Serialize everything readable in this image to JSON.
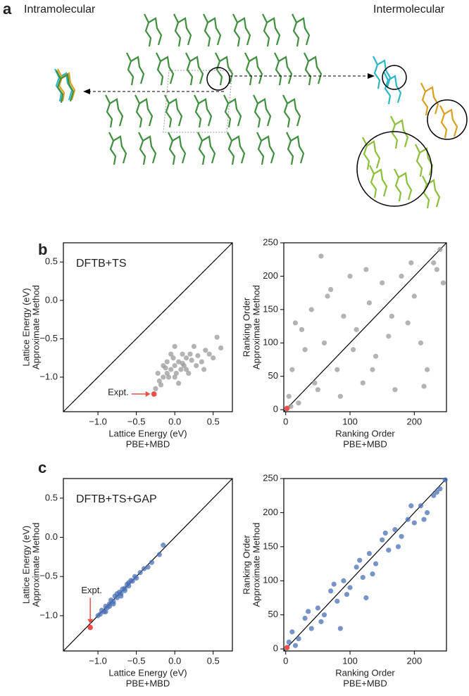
{
  "figure": {
    "panel_a": "a",
    "intramolecular": "Intramolecular",
    "intermolecular": "Intermolecular",
    "panel_b": "b",
    "panel_c": "c"
  },
  "chart_data": [
    {
      "type": "scatter",
      "annotation": "DFTB+TS",
      "xlabel": [
        "Lattice Energy (eV)",
        "PBE+MBD"
      ],
      "ylabel": [
        "Lattice Energy (eV)",
        "Approximate Method"
      ],
      "xlim": [
        -1.45,
        0.75
      ],
      "ylim": [
        -1.45,
        0.75
      ],
      "xticks": [
        {
          "value": -1,
          "label": "−1.0"
        },
        {
          "value": -0.5,
          "label": "−0.5"
        },
        {
          "value": 0,
          "label": "0.0"
        },
        {
          "value": 0.5,
          "label": "0.5"
        }
      ],
      "yticks": [
        {
          "value": -1,
          "label": "−1.0"
        },
        {
          "value": -0.5,
          "label": "−0.5"
        },
        {
          "value": 0,
          "label": "0.0"
        },
        {
          "value": 0.5,
          "label": "0.5"
        }
      ],
      "color": "#9a9a9a",
      "x": [
        -0.25,
        -0.2,
        -0.15,
        -0.1,
        -0.05,
        0,
        0.05,
        0.1,
        0.15,
        0.2,
        -0.18,
        -0.08,
        0.02,
        0.12,
        0.22,
        0.3,
        0.35,
        0.4,
        0.45,
        0.55,
        0.6,
        -0.22,
        -0.12,
        -0.02,
        0.08,
        0.18,
        0.28,
        -0.1,
        0,
        0.1,
        0.05,
        -0.05,
        0.15,
        0.25,
        -0.15,
        0.0,
        0.38,
        0.5
      ],
      "y": [
        -1.15,
        -1.05,
        -1.0,
        -0.95,
        -0.9,
        -0.85,
        -0.8,
        -0.82,
        -0.75,
        -0.7,
        -1.1,
        -1.0,
        -0.95,
        -0.85,
        -0.78,
        -0.72,
        -0.8,
        -0.65,
        -0.7,
        -0.48,
        -0.62,
        -0.95,
        -0.88,
        -0.75,
        -0.9,
        -0.95,
        -0.85,
        -0.8,
        -1.0,
        -0.7,
        -1.08,
        -0.7,
        -0.9,
        -0.6,
        -0.85,
        -0.6,
        -0.9,
        -0.75
      ],
      "expt": {
        "label": "Expt.",
        "x": -0.27,
        "y": -1.22,
        "color": "#e8504a"
      }
    },
    {
      "type": "scatter",
      "xlabel": [
        "Ranking Order",
        "PBE+MBD"
      ],
      "ylabel": [
        "Ranking Order",
        "Approximate Method"
      ],
      "xlim": [
        -3,
        250
      ],
      "ylim": [
        -3,
        250
      ],
      "xticks": [
        0,
        100,
        200
      ],
      "yticks": [
        0,
        50,
        100,
        150,
        200,
        250
      ],
      "color": "#9a9a9a",
      "x": [
        5,
        10,
        15,
        20,
        30,
        40,
        50,
        55,
        60,
        70,
        80,
        90,
        100,
        110,
        120,
        125,
        130,
        140,
        150,
        160,
        170,
        180,
        190,
        200,
        210,
        220,
        230,
        240,
        245,
        8,
        25,
        45,
        65,
        85,
        105,
        135,
        165,
        195,
        215,
        235
      ],
      "y": [
        20,
        60,
        130,
        10,
        90,
        150,
        30,
        230,
        100,
        180,
        60,
        140,
        200,
        120,
        40,
        210,
        160,
        80,
        190,
        110,
        30,
        200,
        130,
        170,
        100,
        60,
        220,
        240,
        190,
        5,
        120,
        40,
        170,
        20,
        90,
        60,
        140,
        220,
        35,
        210
      ],
      "expt": {
        "x": 2,
        "y": 2,
        "color": "#e8504a"
      }
    },
    {
      "type": "scatter",
      "annotation": "DFTB+TS+GAP",
      "xlabel": [
        "Lattice Energy (eV)",
        "PBE+MBD"
      ],
      "ylabel": [
        "Lattice Energy (eV)",
        "Approximate Method"
      ],
      "xlim": [
        -1.45,
        0.75
      ],
      "ylim": [
        -1.45,
        0.75
      ],
      "xticks": [
        {
          "value": -1,
          "label": "−1.0"
        },
        {
          "value": -0.5,
          "label": "−0.5"
        },
        {
          "value": 0,
          "label": "0.0"
        },
        {
          "value": 0.5,
          "label": "0.5"
        }
      ],
      "yticks": [
        {
          "value": -1,
          "label": "−1.0"
        },
        {
          "value": -0.5,
          "label": "−0.5"
        },
        {
          "value": 0,
          "label": "0.0"
        },
        {
          "value": 0.5,
          "label": "0.5"
        }
      ],
      "color": "#4a6fb5",
      "x": [
        -1.0,
        -0.97,
        -0.95,
        -0.92,
        -0.9,
        -0.88,
        -0.85,
        -0.83,
        -0.8,
        -0.78,
        -0.75,
        -0.72,
        -0.7,
        -0.68,
        -0.65,
        -0.62,
        -0.6,
        -0.57,
        -0.55,
        -0.52,
        -0.5,
        -0.45,
        -0.4,
        -0.35,
        -0.3,
        -0.2,
        -0.15,
        -0.9,
        -0.8,
        -0.7,
        -0.6,
        -0.85,
        -0.75,
        -0.65
      ],
      "y": [
        -1.0,
        -0.98,
        -0.93,
        -0.95,
        -0.88,
        -0.9,
        -0.85,
        -0.8,
        -0.82,
        -0.75,
        -0.77,
        -0.7,
        -0.72,
        -0.66,
        -0.65,
        -0.6,
        -0.62,
        -0.55,
        -0.56,
        -0.5,
        -0.52,
        -0.45,
        -0.4,
        -0.38,
        -0.32,
        -0.22,
        -0.1,
        -0.95,
        -0.85,
        -0.75,
        -0.58,
        -0.88,
        -0.72,
        -0.68
      ],
      "expt": {
        "label": "Expt.",
        "x": -1.1,
        "y": -1.15,
        "color": "#e8504a"
      }
    },
    {
      "type": "scatter",
      "xlabel": [
        "Ranking Order",
        "PBE+MBD"
      ],
      "ylabel": [
        "Ranking Order",
        "Approximate Method"
      ],
      "xlim": [
        -3,
        250
      ],
      "ylim": [
        -3,
        250
      ],
      "xticks": [
        0,
        100,
        200
      ],
      "yticks": [
        0,
        50,
        100,
        150,
        200,
        250
      ],
      "color": "#4a6fb5",
      "x": [
        5,
        10,
        20,
        30,
        40,
        50,
        60,
        70,
        80,
        90,
        100,
        110,
        120,
        130,
        140,
        150,
        160,
        170,
        180,
        190,
        200,
        210,
        220,
        230,
        240,
        248,
        15,
        35,
        55,
        75,
        95,
        115,
        135,
        155,
        175,
        195,
        215,
        235,
        85,
        125
      ],
      "y": [
        10,
        25,
        15,
        45,
        30,
        60,
        50,
        85,
        70,
        100,
        90,
        120,
        105,
        140,
        125,
        160,
        145,
        175,
        165,
        190,
        185,
        210,
        200,
        225,
        235,
        248,
        5,
        55,
        40,
        95,
        80,
        130,
        110,
        170,
        150,
        210,
        190,
        230,
        30,
        75
      ],
      "expt": {
        "x": 2,
        "y": 2,
        "color": "#e8504a"
      }
    }
  ]
}
